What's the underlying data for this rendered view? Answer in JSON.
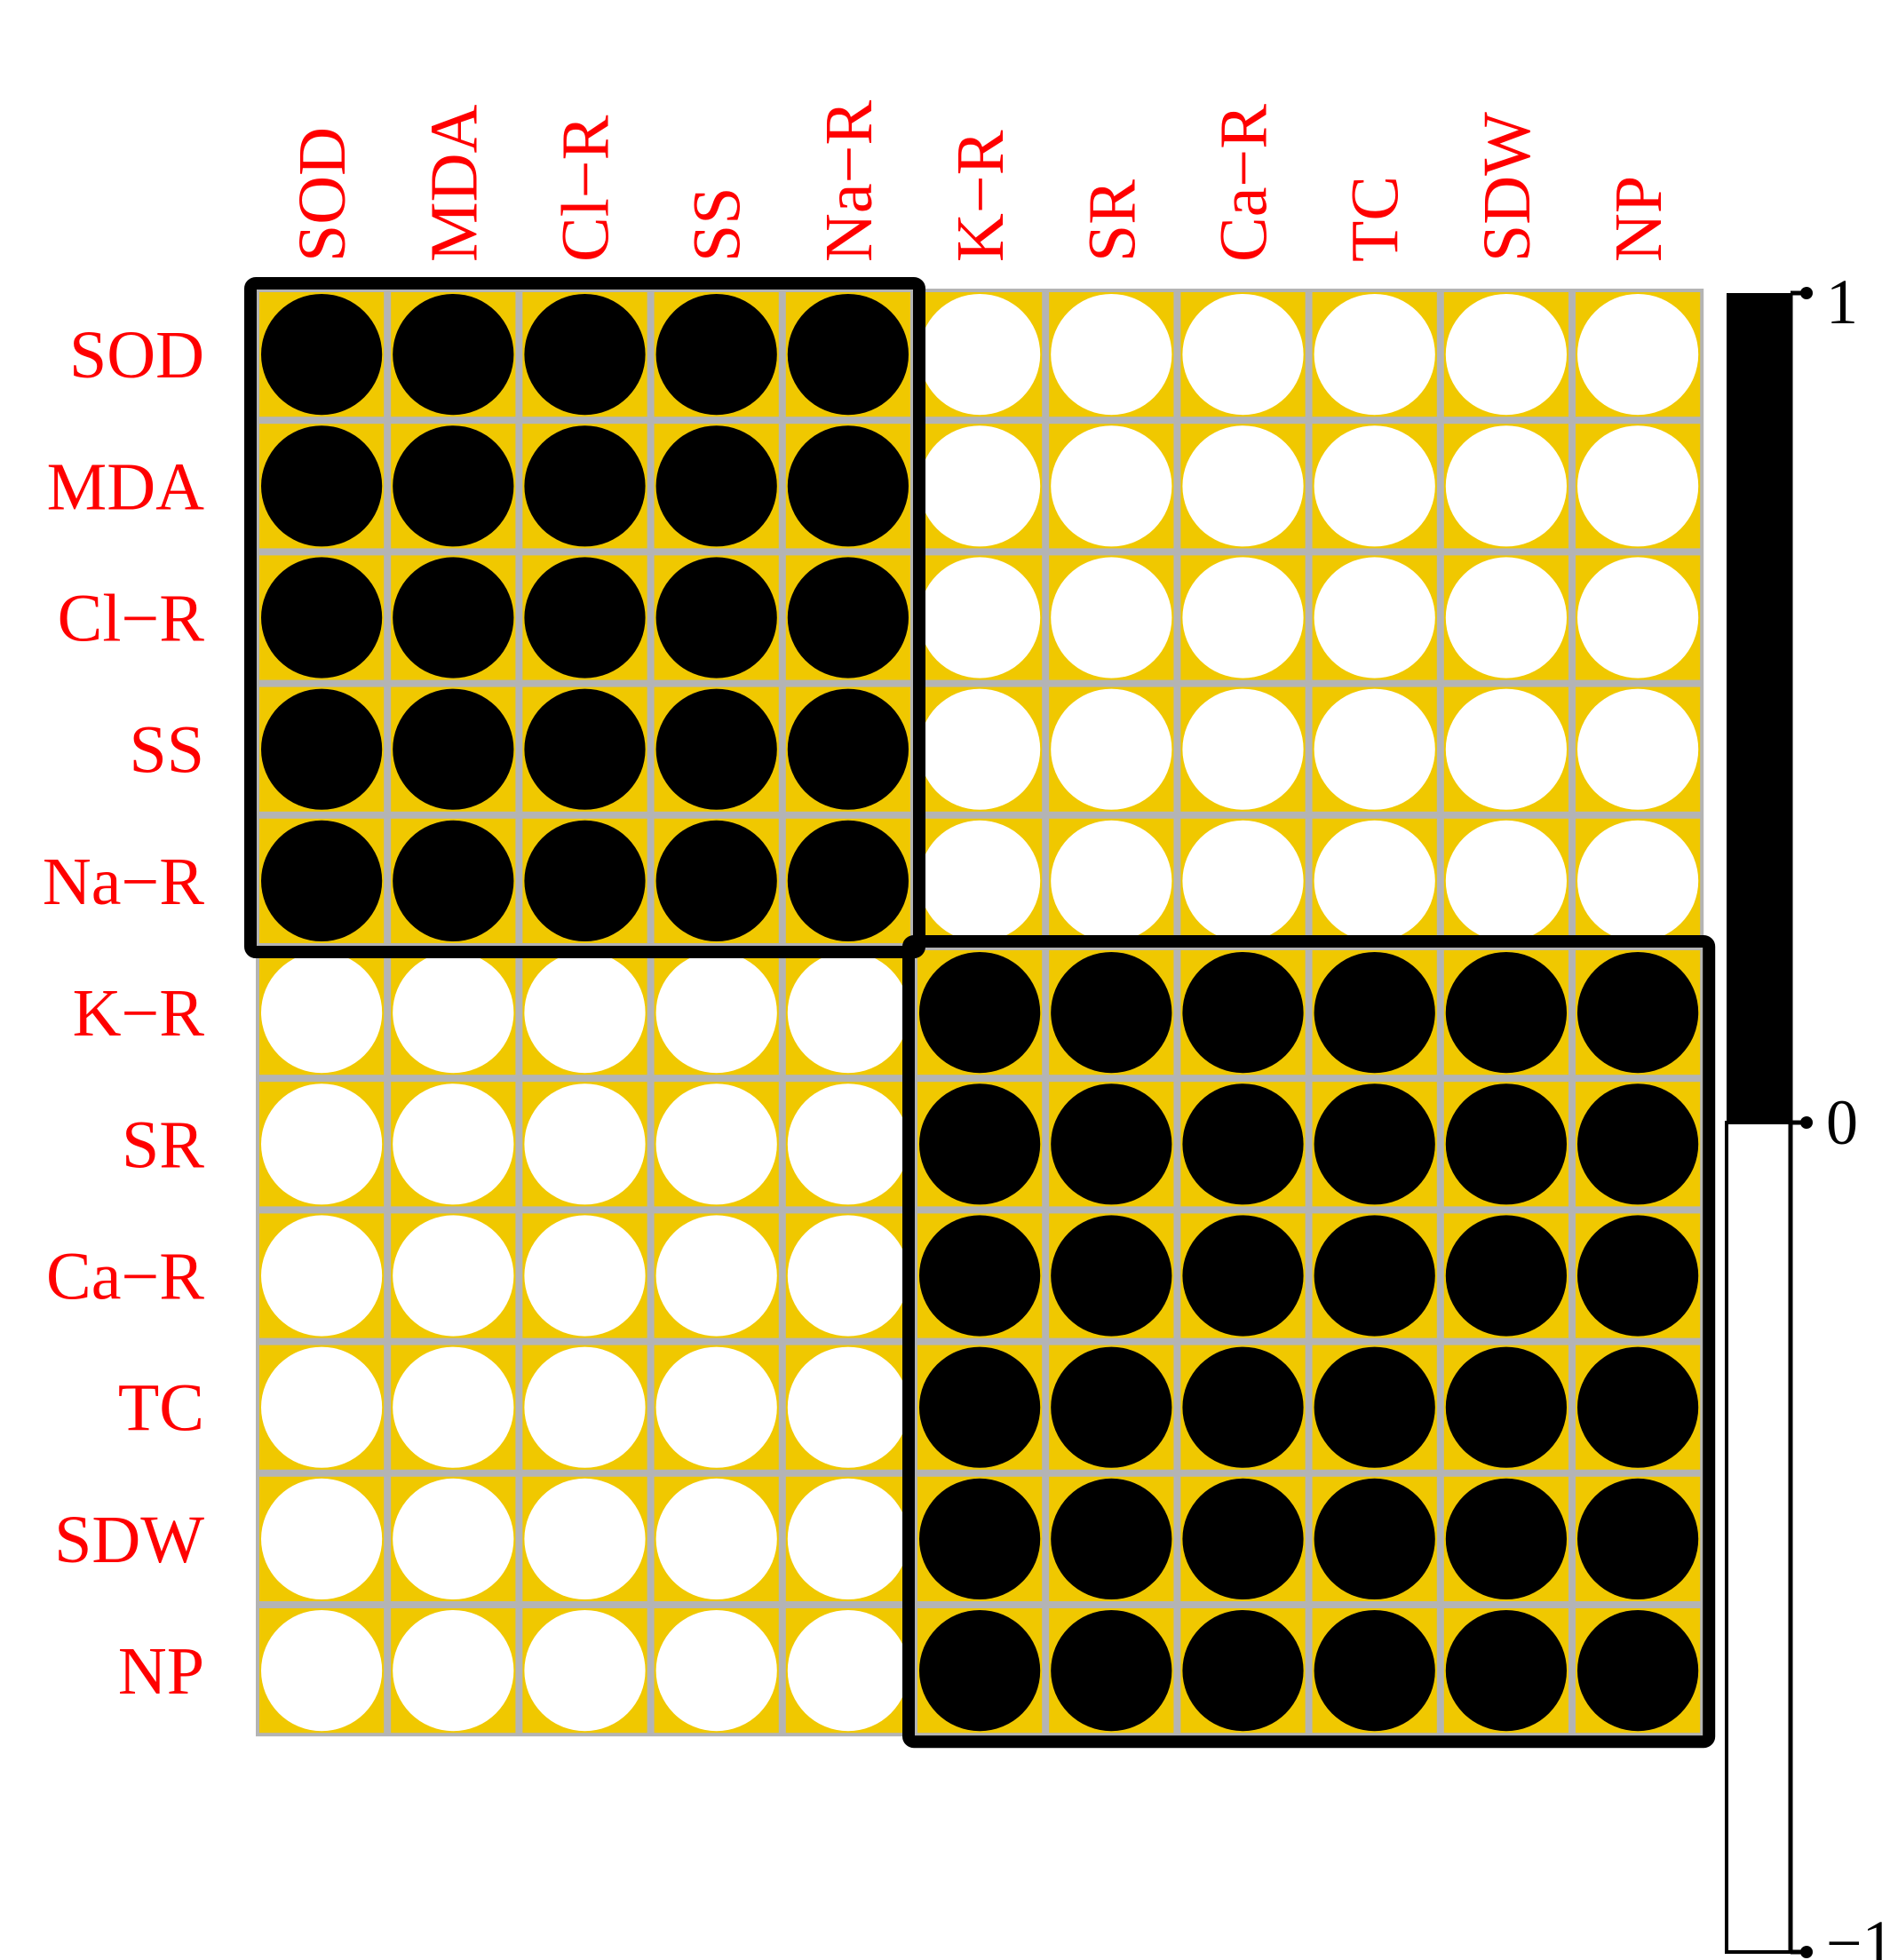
{
  "chart_data": {
    "type": "heatmap",
    "subtype": "correlation-circles",
    "variables": [
      "SOD",
      "MDA",
      "Cl−R",
      "SS",
      "Na−R",
      "K−R",
      "SR",
      "Ca−R",
      "TC",
      "SDW",
      "NP"
    ],
    "matrix": [
      [
        1,
        1,
        1,
        1,
        1,
        -1,
        -1,
        -1,
        -1,
        -1,
        -1
      ],
      [
        1,
        1,
        1,
        1,
        1,
        -1,
        -1,
        -1,
        -1,
        -1,
        -1
      ],
      [
        1,
        1,
        1,
        1,
        1,
        -1,
        -1,
        -1,
        -1,
        -1,
        -1
      ],
      [
        1,
        1,
        1,
        1,
        1,
        -1,
        -1,
        -1,
        -1,
        -1,
        -1
      ],
      [
        1,
        1,
        1,
        1,
        1,
        -1,
        -1,
        -1,
        -1,
        -1,
        -1
      ],
      [
        -1,
        -1,
        -1,
        -1,
        -1,
        1,
        1,
        1,
        1,
        1,
        1
      ],
      [
        -1,
        -1,
        -1,
        -1,
        -1,
        1,
        1,
        1,
        1,
        1,
        1
      ],
      [
        -1,
        -1,
        -1,
        -1,
        -1,
        1,
        1,
        1,
        1,
        1,
        1
      ],
      [
        -1,
        -1,
        -1,
        -1,
        -1,
        1,
        1,
        1,
        1,
        1,
        1
      ],
      [
        -1,
        -1,
        -1,
        -1,
        -1,
        1,
        1,
        1,
        1,
        1,
        1
      ],
      [
        -1,
        -1,
        -1,
        -1,
        -1,
        1,
        1,
        1,
        1,
        1,
        1
      ]
    ],
    "clusters": [
      [
        0,
        4
      ],
      [
        5,
        10
      ]
    ],
    "colorbar": {
      "ticks": [
        1,
        0,
        -1
      ],
      "tick_labels": [
        "1",
        "0",
        "−1"
      ],
      "range": [
        -1,
        1
      ]
    },
    "colors": {
      "positive": "#000000",
      "negative": "#ffffff",
      "cell_background": "#f0c800",
      "grid": "#b4b4b4",
      "labels": "#ff0000",
      "cluster_border": "#000000"
    }
  }
}
